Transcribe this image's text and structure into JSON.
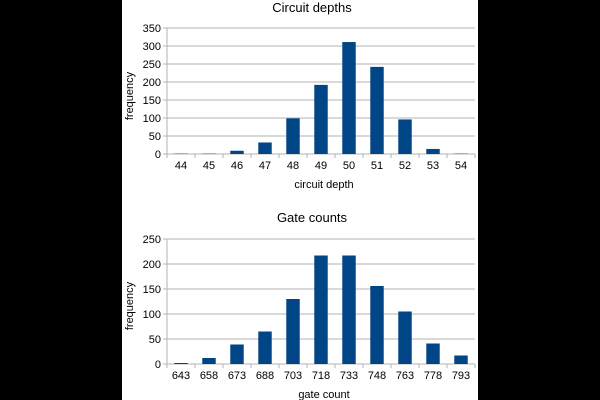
{
  "chart_data": [
    {
      "type": "bar",
      "title": "Circuit depths",
      "xlabel": "circuit depth",
      "ylabel": "frequency",
      "categories": [
        "44",
        "45",
        "46",
        "47",
        "48",
        "49",
        "50",
        "51",
        "52",
        "53",
        "54"
      ],
      "values": [
        1,
        1,
        9,
        32,
        99,
        192,
        311,
        242,
        96,
        14,
        1
      ],
      "ylim": [
        0,
        350
      ],
      "yticks": [
        0,
        50,
        100,
        150,
        200,
        250,
        300,
        350
      ],
      "ytick_labels": [
        "0",
        "50",
        "100",
        "150",
        "200",
        "250",
        "300",
        "350"
      ],
      "grid": true,
      "color": "#004586"
    },
    {
      "type": "bar",
      "title": "Gate counts",
      "xlabel": "gate count",
      "ylabel": "frequency",
      "categories": [
        "643",
        "658",
        "673",
        "688",
        "703",
        "718",
        "733",
        "748",
        "763",
        "778",
        "793"
      ],
      "values": [
        2,
        12,
        39,
        65,
        130,
        217,
        217,
        156,
        105,
        41,
        17
      ],
      "ylim": [
        0,
        250
      ],
      "yticks": [
        0,
        50,
        100,
        150,
        200,
        250
      ],
      "ytick_labels": [
        "0",
        "50",
        "100",
        "150",
        "200",
        "250"
      ],
      "grid": true,
      "color": "#004586"
    }
  ]
}
